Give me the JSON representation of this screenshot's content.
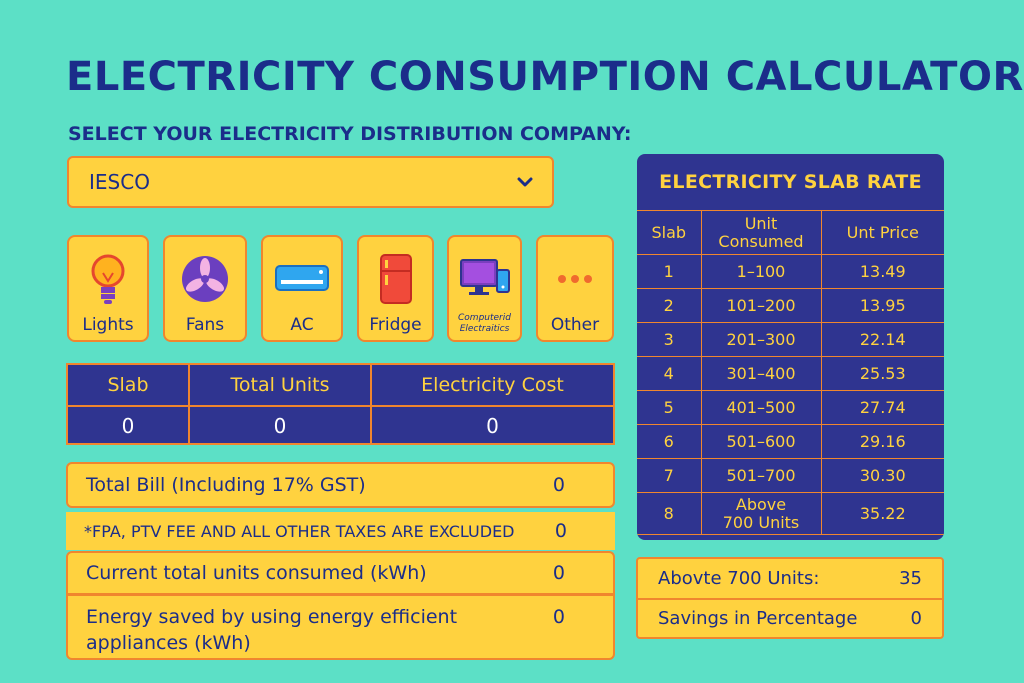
{
  "title": "ELECTRICITY CONSUMPTION CALCULATOR",
  "company": {
    "label": "SELECT YOUR ELECTRICITY DISTRIBUTION COMPANY:",
    "selected": "IESCO"
  },
  "appliances": [
    {
      "label": "Lights",
      "icon": "bulb-icon"
    },
    {
      "label": "Fans",
      "icon": "fan-icon"
    },
    {
      "label": "AC",
      "icon": "ac-icon"
    },
    {
      "label": "Fridge",
      "icon": "fridge-icon"
    },
    {
      "label": "Computerid Electraitics",
      "icon": "computer-icon"
    },
    {
      "label": "Other",
      "icon": "dots-icon"
    }
  ],
  "summary": {
    "headers": [
      "Slab",
      "Total Units",
      "Electricity Cost"
    ],
    "values": [
      "0",
      "0",
      "0"
    ]
  },
  "bill": {
    "total_label": "Total Bill (Including 17% GST)",
    "total_value": "0",
    "note": "*FPA, PTV FEE AND ALL OTHER TAXES ARE EXCLUDED",
    "note_value": "0",
    "units_label": "Current total units consumed (kWh)",
    "units_value": "0",
    "saved_label": "Energy saved by using energy efficient appliances (kWh)",
    "saved_value": "0"
  },
  "slab_rates": {
    "title": "ELECTRICITY SLAB RATE",
    "headers": [
      "Slab",
      "Unit Consumed",
      "Unt Price"
    ],
    "rows": [
      [
        "1",
        "1–100",
        "13.49"
      ],
      [
        "2",
        "101–200",
        "13.95"
      ],
      [
        "3",
        "201–300",
        "22.14"
      ],
      [
        "4",
        "301–400",
        "25.53"
      ],
      [
        "5",
        "401–500",
        "27.74"
      ],
      [
        "6",
        "501–600",
        "29.16"
      ],
      [
        "7",
        "501–700",
        "30.30"
      ],
      [
        "8",
        "Above 700 Units",
        "35.22"
      ]
    ]
  },
  "side": {
    "above_label": "Abovte 700 Units:",
    "above_value": "35",
    "savings_label": "Savings in Percentage",
    "savings_value": "0"
  },
  "colors": {
    "background": "#5ce0c6",
    "panel": "#ffd23f",
    "navy": "#2f3490",
    "border": "#f0862e"
  }
}
